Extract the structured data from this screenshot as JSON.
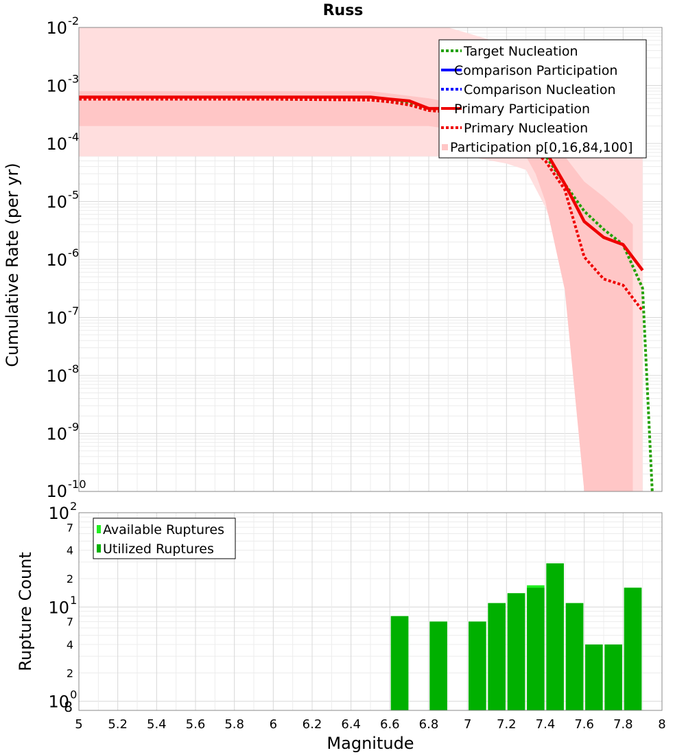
{
  "chart_data": [
    {
      "type": "line",
      "title": "Russ",
      "ylabel": "Cumulative Rate (per yr)",
      "xlabel": "",
      "xlim": [
        5,
        8
      ],
      "ylim": [
        1e-10,
        0.01
      ],
      "y_scale": "log",
      "grid": true,
      "legend_position": "top-right",
      "y_tick_labels": [
        {
          "base": "10",
          "exp": "-2",
          "value": 0.01
        },
        {
          "base": "10",
          "exp": "-3",
          "value": 0.001
        },
        {
          "base": "10",
          "exp": "-4",
          "value": 0.0001
        },
        {
          "base": "10",
          "exp": "-5",
          "value": 1e-05
        },
        {
          "base": "10",
          "exp": "-6",
          "value": 1e-06
        },
        {
          "base": "10",
          "exp": "-7",
          "value": 1e-07
        },
        {
          "base": "10",
          "exp": "-8",
          "value": 1e-08
        },
        {
          "base": "10",
          "exp": "-9",
          "value": 1e-09
        },
        {
          "base": "10",
          "exp": "-10",
          "value": 1e-10
        }
      ],
      "legend": [
        {
          "label": "Target Nucleation",
          "color": "#22a000",
          "style": "dotted"
        },
        {
          "label": "Comparison Participation",
          "color": "#0000ff",
          "style": "solid"
        },
        {
          "label": "Comparison Nucleation",
          "color": "#0000ff",
          "style": "dotted"
        },
        {
          "label": "Primary Participation",
          "color": "#ee0000",
          "style": "solid"
        },
        {
          "label": "Primary Nucleation",
          "color": "#ee0000",
          "style": "dotted"
        },
        {
          "label": "Participation p[0,16,84,100]",
          "color": "#ffc6c6",
          "style": "band"
        }
      ],
      "series": [
        {
          "name": "Target Nucleation",
          "color": "#22a000",
          "style": "dotted",
          "x": [
            5.0,
            5.5,
            6.0,
            6.5,
            6.6,
            6.7,
            6.8,
            6.9,
            7.0,
            7.1,
            7.2,
            7.3,
            7.4,
            7.5,
            7.6,
            7.7,
            7.8,
            7.9,
            7.95
          ],
          "y": [
            0.00058,
            0.00058,
            0.00058,
            0.00057,
            0.00053,
            0.00048,
            0.00038,
            0.00036,
            0.00028,
            0.00021,
            0.00016,
            0.00011,
            6.2e-05,
            2e-05,
            6.8e-06,
            3.3e-06,
            1.8e-06,
            3.2e-07,
            1e-10
          ]
        },
        {
          "name": "Primary Nucleation",
          "color": "#ee0000",
          "style": "dotted",
          "x": [
            5.0,
            5.5,
            6.0,
            6.5,
            6.6,
            6.7,
            6.8,
            6.9,
            7.0,
            7.1,
            7.2,
            7.3,
            7.4,
            7.5,
            7.6,
            7.7,
            7.8,
            7.9
          ],
          "y": [
            0.00058,
            0.00058,
            0.00058,
            0.00056,
            0.00052,
            0.00046,
            0.00037,
            0.00035,
            0.00027,
            0.0002,
            0.00015,
            9.5e-05,
            5e-05,
            1.6e-05,
            1.1e-06,
            4.6e-07,
            3.6e-07,
            1.3e-07
          ]
        },
        {
          "name": "Primary Participation",
          "color": "#ee0000",
          "style": "solid",
          "x": [
            5.0,
            5.5,
            6.0,
            6.5,
            6.6,
            6.7,
            6.8,
            6.9,
            7.0,
            7.1,
            7.2,
            7.3,
            7.4,
            7.5,
            7.6,
            7.7,
            7.8,
            7.9
          ],
          "y": [
            0.00063,
            0.00063,
            0.00063,
            0.00063,
            0.00058,
            0.00054,
            0.0004,
            0.0004,
            0.00031,
            0.00023,
            0.00018,
            0.000135,
            7.5e-05,
            2e-05,
            4.5e-06,
            2.4e-06,
            1.8e-06,
            6.5e-07
          ]
        }
      ],
      "bands": [
        {
          "name": "p0-p100",
          "color": "#ffdede",
          "x": [
            5.0,
            6.5,
            6.9,
            7.0,
            7.2,
            7.3,
            7.4,
            7.5,
            7.6,
            7.7,
            7.8,
            7.9
          ],
          "upper": [
            0.01,
            0.01,
            0.01,
            0.008,
            0.005,
            0.0026,
            0.00125,
            0.0004,
            0.0002,
            0.00015,
            0.00012,
            0.00011
          ],
          "lower": [
            6e-05,
            6e-05,
            6e-05,
            6e-05,
            4.5e-05,
            3.5e-05,
            8e-06,
            1e-06,
            1e-10,
            1e-10,
            1e-10,
            1e-10
          ]
        },
        {
          "name": "p16-p84",
          "color": "#ffc6c6",
          "x": [
            5.0,
            6.5,
            6.8,
            7.0,
            7.2,
            7.3,
            7.35,
            7.4,
            7.5,
            7.6,
            7.7,
            7.8,
            7.85
          ],
          "upper": [
            0.0008,
            0.0008,
            0.0006,
            0.00045,
            0.00032,
            0.00022,
            0.00018,
            0.00012,
            6e-05,
            2.2e-05,
            1.2e-05,
            6e-06,
            4e-06
          ],
          "lower": [
            0.0002,
            0.0002,
            0.0002,
            0.00016,
            0.00011,
            6e-05,
            3e-05,
            1e-05,
            3e-07,
            1e-10,
            1e-10,
            1e-10,
            1e-10
          ]
        }
      ]
    },
    {
      "type": "bar",
      "title": "",
      "ylabel": "Rupture Count",
      "xlabel": "Magnitude",
      "xlim": [
        5,
        8
      ],
      "ylim": [
        0.8,
        100
      ],
      "y_scale": "log",
      "grid": true,
      "legend_position": "top-left",
      "x_ticks": [
        "5",
        "5.2",
        "5.4",
        "5.6",
        "5.8",
        "6",
        "6.2",
        "6.4",
        "6.6",
        "6.8",
        "7",
        "7.2",
        "7.4",
        "7.6",
        "7.8",
        "8"
      ],
      "y_major_ticks": [
        {
          "base": "10",
          "exp": "2",
          "value": 100
        },
        {
          "base": "10",
          "exp": "1",
          "value": 10
        },
        {
          "base": "10",
          "exp": "0",
          "value": 1
        }
      ],
      "y_minor_ticks": [
        {
          "label": "7",
          "value": 70
        },
        {
          "label": "4",
          "value": 40
        },
        {
          "label": "2",
          "value": 20
        },
        {
          "label": "7",
          "value": 7
        },
        {
          "label": "4",
          "value": 4
        },
        {
          "label": "2",
          "value": 2
        },
        {
          "label": "8",
          "value": 0.8
        }
      ],
      "legend": [
        {
          "label": "Available Ruptures",
          "color": "#22ee22"
        },
        {
          "label": "Utilized Ruptures",
          "color": "#00b000"
        }
      ],
      "bins": [
        6.65,
        6.85,
        7.05,
        7.15,
        7.25,
        7.35,
        7.45,
        7.55,
        7.65,
        7.75,
        7.85
      ],
      "series": [
        {
          "name": "Available Ruptures",
          "color": "#22ee22",
          "values": [
            8,
            7,
            7,
            11,
            14,
            17,
            29,
            11,
            4,
            4,
            16
          ]
        },
        {
          "name": "Utilized Ruptures",
          "color": "#00b000",
          "values": [
            8,
            7,
            7,
            11,
            14,
            16,
            29,
            11,
            4,
            4,
            16
          ]
        }
      ]
    }
  ]
}
